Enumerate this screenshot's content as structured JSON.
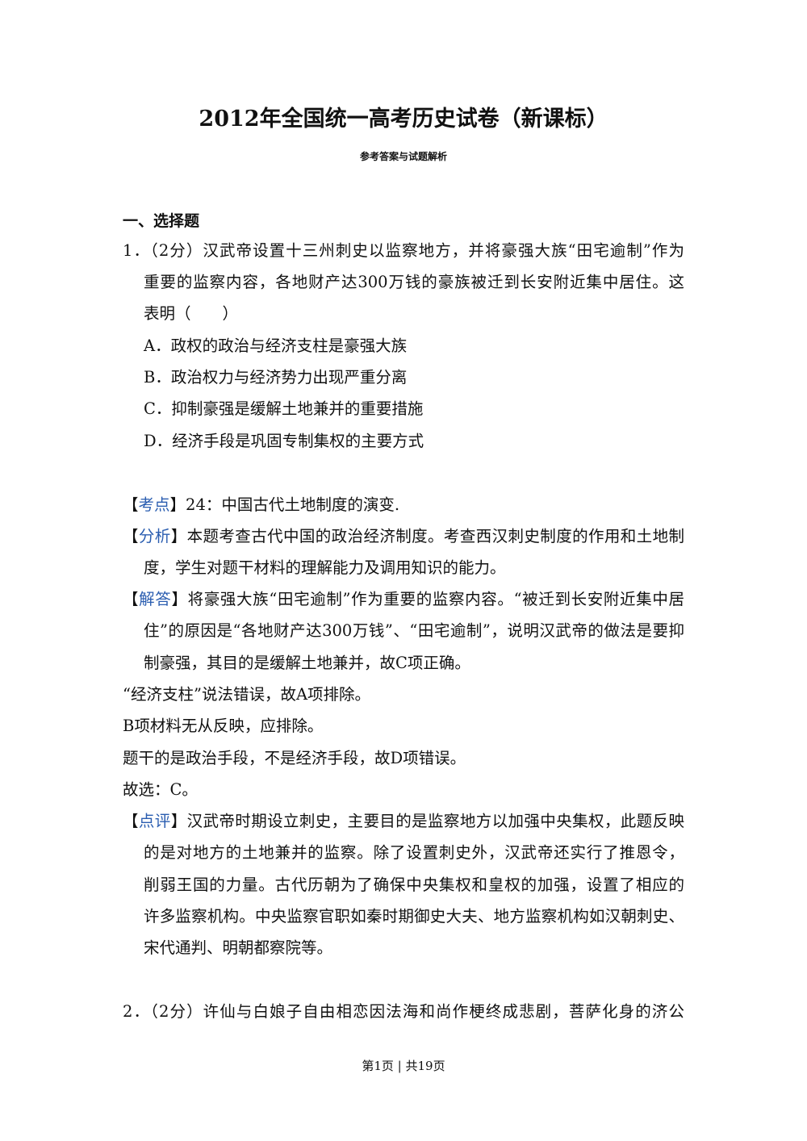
{
  "title": "2012年全国统一高考历史试卷（新课标）",
  "subtitle": "参考答案与试题解析",
  "section": "一、选择题",
  "q1": {
    "lines": [
      "1．（2分）汉武帝设置十三州刺史以监察地方，并将豪强大族“田宅逾制”作为",
      "重要的监察内容，各地财产达300万钱的豪族被迁到长安附近集中居住。这",
      "表明（　　）"
    ],
    "options": [
      "A．政权的政治与经济支柱是豪强大族",
      "B．政治权力与经济势力出现严重分离",
      "C．抑制豪强是缓解土地兼并的重要措施",
      "D．经济手段是巩固专制集权的主要方式"
    ],
    "kaodian": {
      "label": "考点",
      "lines": [
        "24：中国古代土地制度的演变."
      ]
    },
    "fenxi": {
      "label": "分析",
      "lines": [
        "本题考查古代中国的政治经济制度。考查西汉刺史制度的作用和土地制",
        "度，学生对题干材料的理解能力及调用知识的能力。"
      ]
    },
    "jieda": {
      "label": "解答",
      "lines": [
        "将豪强大族“田宅逾制”作为重要的监察内容。“被迁到长安附近集中居",
        "住”的原因是“各地财产达300万钱”、“田宅逾制”，说明汉武帝的做法是要抑",
        "制豪强，其目的是缓解土地兼并，故C项正确。"
      ]
    },
    "extra": [
      "“经济支柱”说法错误，故A项排除。",
      "B项材料无从反映，应排除。",
      "题干的是政治手段，不是经济手段，故D项错误。",
      "故选：C。"
    ],
    "dianping": {
      "label": "点评",
      "lines": [
        "汉武帝时期设立刺史，主要目的是监察地方以加强中央集权，此题反映",
        "的是对地方的土地兼并的监察。除了设置刺史外，汉武帝还实行了推恩令，",
        "削弱王国的力量。古代历朝为了确保中央集权和皇权的加强，设置了相应的",
        "许多监察机构。中央监察官职如秦时期御史大夫、地方监察机构如汉朝刺史、",
        "宋代通判、明朝都察院等。"
      ]
    }
  },
  "q2": {
    "lines": [
      "2．（2分）许仙与白娘子自由相恋因法海和尚作梗终成悲剧，菩萨化身的济公"
    ]
  },
  "footer": "第1页 | 共19页",
  "colors": {
    "label_blue": "#2a5db0"
  }
}
